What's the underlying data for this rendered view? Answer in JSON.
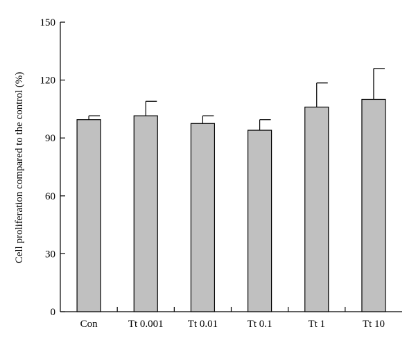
{
  "chart_data": {
    "type": "bar",
    "title": "",
    "xlabel": "",
    "ylabel": "Cell proliferation compared to the control (%)",
    "ylim": [
      0,
      150
    ],
    "yticks": [
      0,
      30,
      60,
      90,
      120,
      150
    ],
    "grid": false,
    "categories": [
      "Con",
      "Tt 0.001",
      "Tt 0.01",
      "Tt 0.1",
      "Tt 1",
      "Tt 10"
    ],
    "values": [
      99.5,
      101.5,
      97.5,
      94.0,
      106.0,
      110.0
    ],
    "error_upper": [
      2.0,
      7.5,
      4.0,
      5.5,
      12.5,
      16.0
    ],
    "colors": {
      "bar_fill": "#c0c0c0",
      "bar_stroke": "#000000"
    }
  }
}
